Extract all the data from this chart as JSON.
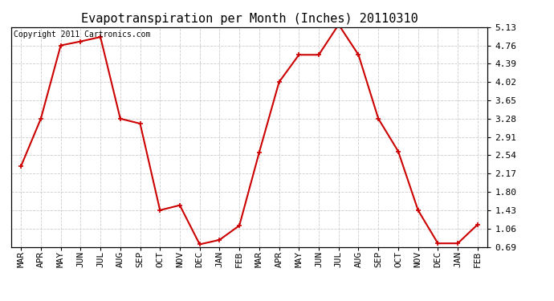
{
  "title": "Evapotranspiration per Month (Inches) 20110310",
  "copyright_text": "Copyright 2011 Cartronics.com",
  "months": [
    "MAR",
    "APR",
    "MAY",
    "JUN",
    "JUL",
    "AUG",
    "SEP",
    "OCT",
    "NOV",
    "DEC",
    "JAN",
    "FEB",
    "MAR",
    "APR",
    "MAY",
    "JUN",
    "JUL",
    "AUG",
    "SEP",
    "OCT",
    "NOV",
    "DEC",
    "JAN",
    "FEB"
  ],
  "values": [
    2.32,
    3.28,
    4.76,
    4.84,
    4.93,
    3.28,
    3.18,
    1.43,
    1.53,
    0.74,
    0.83,
    1.12,
    2.6,
    4.02,
    4.57,
    4.57,
    5.18,
    4.57,
    3.28,
    2.62,
    1.43,
    0.76,
    0.76,
    1.14
  ],
  "yticks": [
    0.69,
    1.06,
    1.43,
    1.8,
    2.17,
    2.54,
    2.91,
    3.28,
    3.65,
    4.02,
    4.39,
    4.76,
    5.13
  ],
  "line_color": "#cc0000",
  "marker": "+",
  "marker_size": 5,
  "marker_linewidth": 1.2,
  "line_width": 1.5,
  "grid_color": "#cccccc",
  "grid_linestyle": "--",
  "grid_linewidth": 0.6,
  "background_color": "#ffffff",
  "title_fontsize": 11,
  "tick_fontsize": 8,
  "copyright_fontsize": 7,
  "ylim_min": 0.69,
  "ylim_max": 5.13,
  "fig_width": 6.9,
  "fig_height": 3.75,
  "dpi": 100
}
